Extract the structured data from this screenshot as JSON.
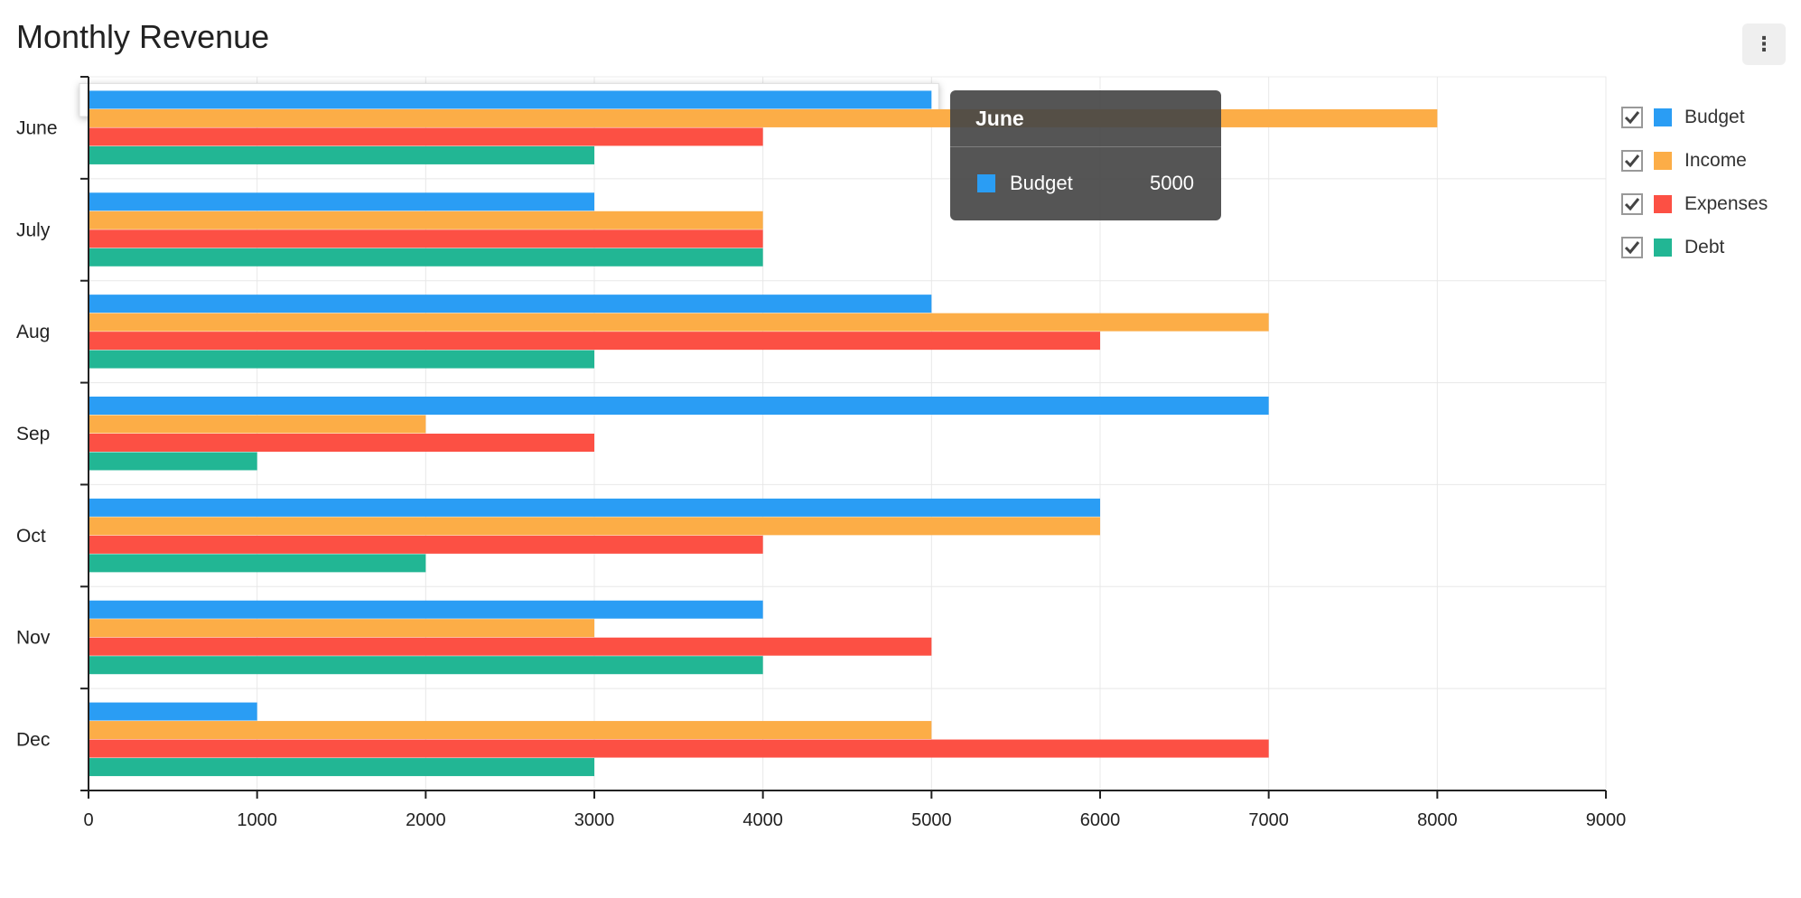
{
  "title": "Monthly Revenue",
  "menu_icon": "more-vertical-icon",
  "menu_glyph": "⋮",
  "chart_data": {
    "type": "bar",
    "orientation": "horizontal",
    "categories": [
      "June",
      "July",
      "Aug",
      "Sep",
      "Oct",
      "Nov",
      "Dec"
    ],
    "series": [
      {
        "name": "Budget",
        "color": "#2a9df4",
        "values": [
          5000,
          3000,
          5000,
          7000,
          6000,
          4000,
          1000
        ]
      },
      {
        "name": "Income",
        "color": "#fcad47",
        "values": [
          8000,
          4000,
          7000,
          2000,
          6000,
          3000,
          5000
        ]
      },
      {
        "name": "Expenses",
        "color": "#fc5044",
        "values": [
          4000,
          4000,
          6000,
          3000,
          4000,
          5000,
          7000
        ]
      },
      {
        "name": "Debt",
        "color": "#22b694",
        "values": [
          3000,
          4000,
          3000,
          1000,
          2000,
          4000,
          3000
        ]
      }
    ],
    "xlim": [
      0,
      9000
    ],
    "x_ticks": [
      "0",
      "1000",
      "2000",
      "3000",
      "4000",
      "5000",
      "6000",
      "7000",
      "8000",
      "9000"
    ],
    "grid": true,
    "legend_position": "right",
    "highlight": {
      "category": "June",
      "series": "Budget"
    }
  },
  "legend": {
    "check_icon": "checkmark-icon",
    "items": [
      {
        "label": "Budget",
        "color": "#2a9df4",
        "checked": true
      },
      {
        "label": "Income",
        "color": "#fcad47",
        "checked": true
      },
      {
        "label": "Expenses",
        "color": "#fc5044",
        "checked": true
      },
      {
        "label": "Debt",
        "color": "#22b694",
        "checked": true
      }
    ]
  },
  "tooltip": {
    "title": "June",
    "series_name": "Budget",
    "value": "5000",
    "color": "#2a9df4"
  }
}
